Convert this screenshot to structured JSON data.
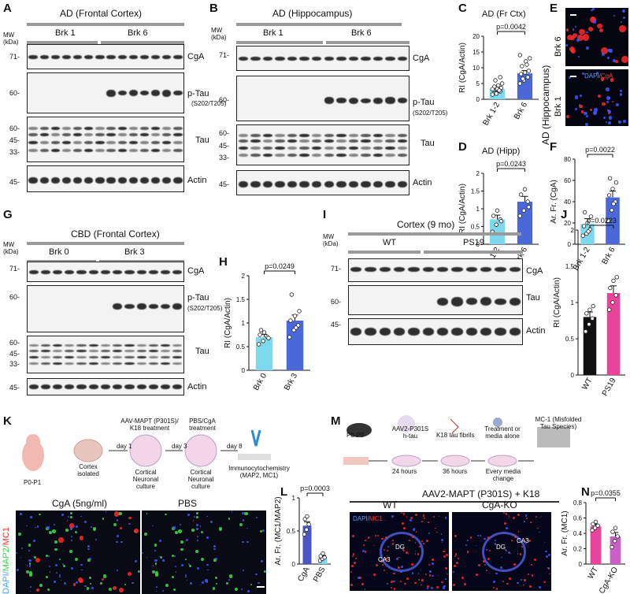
{
  "panels": {
    "A": {
      "letter": "A",
      "title": "AD (Frontal Cortex)",
      "groups": [
        "Brk 1",
        "Brk 6"
      ],
      "mw_label": "MW (kDa)",
      "mw": [
        "71-",
        "60-",
        "60-",
        "45-",
        "33-",
        "45-"
      ],
      "rows": [
        "CgA",
        "p-Tau",
        "(S202/T205)",
        "Tau",
        "Actin"
      ]
    },
    "B": {
      "letter": "B",
      "title": "AD (Hippocampus)",
      "groups": [
        "Brk 1",
        "Brk 6"
      ],
      "mw_label": "MW (kDa)",
      "mw": [
        "71-",
        "60-",
        "60-",
        "45-",
        "33-",
        "45-"
      ],
      "rows": [
        "CgA",
        "p-Tau",
        "(S202/T205)",
        "Tau",
        "Actin"
      ]
    },
    "C": {
      "letter": "C",
      "title": "AD (Fr Ctx)"
    },
    "D": {
      "letter": "D",
      "title": "AD (Hipp)"
    },
    "E": {
      "letter": "E",
      "side": "AD (Hippocampus)",
      "top": "Brk 6",
      "bottom": "Brk 1",
      "stain_a": "DAPI/",
      "stain_b": "CgA"
    },
    "F": {
      "letter": "F"
    },
    "G": {
      "letter": "G",
      "title": "CBD (Frontal Cortex)",
      "groups": [
        "Brk 0",
        "Brk 3"
      ],
      "mw_label": "MW (kDa)",
      "mw": [
        "71-",
        "60-",
        "60-",
        "45-",
        "33-",
        "45-"
      ],
      "rows": [
        "CgA",
        "p-Tau",
        "(S202/T205)",
        "Tau",
        "Actin"
      ]
    },
    "H": {
      "letter": "H"
    },
    "I": {
      "letter": "I",
      "title": "Cortex (9 mo)",
      "groups": [
        "WT",
        "PS19"
      ],
      "mw_label": "MW (kDa)",
      "mw": [
        "71-",
        "60-",
        "45-"
      ],
      "rows": [
        "CgA",
        "Tau",
        "Actin"
      ]
    },
    "J": {
      "letter": "J"
    },
    "K": {
      "letter": "K",
      "steps": [
        "P0-P1",
        "Cortex isolated",
        "day 1",
        "AAV-MAPT (P301S)/ K18 treatment",
        "Cortical Neuronal culture",
        "day 3",
        "PBS/CgA treatment",
        "Cortical Neuronal culture",
        "day 8",
        "Immunocytochemistry (MAP2, MC1)"
      ],
      "img_left": "CgA (5ng/ml)",
      "img_right": "PBS",
      "stain_a": "DAPI/",
      "stain_b": "MAP2/",
      "stain_c": "MC1"
    },
    "L": {
      "letter": "L"
    },
    "M": {
      "letter": "M",
      "steps": [
        "P8-P9",
        "AAV2-P301S h-tau",
        "24 hours",
        "K18 tau fibrils",
        "36 hours",
        "Treatment or media alone",
        "Every media change",
        "MC-1 (Misfolded Tau Species)"
      ],
      "title": "AAV2-MAPT (P301S) + K18",
      "img_left": "WT",
      "img_right": "CgA-KO",
      "stain_a": "DAPI/",
      "stain_b": "MC1",
      "region_dg": "DG",
      "region_ca3": "CA3"
    },
    "N": {
      "letter": "N"
    }
  },
  "chart_data": [
    {
      "id": "C",
      "type": "bar",
      "categories": [
        "Brk 1-2",
        "Brk 6"
      ],
      "values": [
        3.2,
        8.2
      ],
      "errors": [
        0.5,
        0.9
      ],
      "ylabel": "RI (CgA/Actin)",
      "ylim": [
        0,
        20
      ],
      "yticks": [
        0,
        5,
        10,
        15,
        20
      ],
      "pvalue": "p=0.0042",
      "colors": [
        "#7fd9ee",
        "#4a68d8"
      ],
      "points": [
        [
          1.5,
          2.0,
          2.5,
          3.0,
          3.3,
          3.6,
          4.0,
          4.4,
          5.0,
          6.0,
          2.8,
          3.2,
          1.8,
          7.0
        ],
        [
          5.0,
          6.0,
          7.0,
          8.0,
          8.5,
          9.0,
          10.5,
          12.0,
          13.0,
          6.5,
          11.0,
          14.0
        ]
      ]
    },
    {
      "id": "D",
      "type": "bar",
      "categories": [
        "Brk 1-2",
        "Brk 6"
      ],
      "values": [
        0.7,
        1.2
      ],
      "errors": [
        0.12,
        0.15
      ],
      "ylabel": "RI (CgA/Actin)",
      "ylim": [
        0,
        2.0
      ],
      "yticks": [
        0,
        0.5,
        1.0,
        1.5,
        2.0
      ],
      "pvalue": "p=0.0243",
      "colors": [
        "#7fd9ee",
        "#4a68d8"
      ],
      "points": [
        [
          0.35,
          0.55,
          0.7,
          0.8,
          0.95,
          0.65
        ],
        [
          0.8,
          0.95,
          1.2,
          1.4,
          1.55,
          1.05
        ]
      ]
    },
    {
      "id": "F",
      "type": "bar",
      "categories": [
        "Brk 1-2",
        "Brk 6"
      ],
      "values": [
        19,
        44
      ],
      "errors": [
        5,
        6
      ],
      "ylabel": "Ar. Fr. (CgA)",
      "ylim": [
        0,
        80
      ],
      "yticks": [
        0,
        20,
        40,
        60,
        80
      ],
      "pvalue": "p=0.0022",
      "colors": [
        "#7fd9ee",
        "#4a68d8"
      ],
      "points": [
        [
          8,
          10,
          14,
          17,
          20,
          26,
          30,
          12
        ],
        [
          22,
          32,
          40,
          46,
          52,
          58,
          62,
          38
        ]
      ]
    },
    {
      "id": "H",
      "type": "bar",
      "categories": [
        "Brk 0",
        "Brk 3"
      ],
      "values": [
        0.7,
        1.05
      ],
      "errors": [
        0.06,
        0.12
      ],
      "ylabel": "RI (CgA/Actin)",
      "ylim": [
        0,
        2.0
      ],
      "yticks": [
        0,
        0.5,
        1.0,
        1.5,
        2.0
      ],
      "pvalue": "p=0.0249",
      "colors": [
        "#7fd9ee",
        "#4a68d8"
      ],
      "points": [
        [
          0.55,
          0.62,
          0.7,
          0.75,
          0.8,
          0.68,
          0.85
        ],
        [
          0.7,
          0.85,
          0.95,
          1.05,
          1.15,
          1.25,
          1.6,
          0.9
        ]
      ]
    },
    {
      "id": "J",
      "type": "bar",
      "categories": [
        "WT",
        "PS19"
      ],
      "values": [
        0.8,
        1.13
      ],
      "errors": [
        0.07,
        0.1
      ],
      "ylabel": "RI (CgA/Actin)",
      "ylim": [
        0,
        2.0
      ],
      "yticks": [
        0,
        0.5,
        1.0,
        1.5,
        2.0
      ],
      "pvalue": "p=0.0223",
      "colors": [
        "#111111",
        "#e8449a"
      ],
      "points": [
        [
          0.6,
          0.7,
          0.78,
          0.85,
          0.9,
          0.95
        ],
        [
          0.9,
          1.0,
          1.1,
          1.2,
          1.3,
          1.35
        ]
      ]
    },
    {
      "id": "L",
      "type": "bar",
      "categories": [
        "CgA",
        "PBS"
      ],
      "values": [
        0.58,
        0.1
      ],
      "errors": [
        0.06,
        0.03
      ],
      "ylabel": "Ar. Fr. (MC1/MAP2)",
      "ylim": [
        0,
        1.0
      ],
      "yticks": [
        0,
        0.5,
        1.0
      ],
      "pvalue": "p=0.0003",
      "colors": [
        "#4a56c8",
        "#7fd9ee"
      ],
      "points": [
        [
          0.45,
          0.52,
          0.6,
          0.68,
          0.72
        ],
        [
          0.05,
          0.08,
          0.1,
          0.12,
          0.16
        ]
      ]
    },
    {
      "id": "N",
      "type": "bar",
      "categories": [
        "WT",
        "CgA-KO"
      ],
      "values": [
        0.49,
        0.36
      ],
      "errors": [
        0.03,
        0.05
      ],
      "ylabel": "Ar. Fr. (MC1)",
      "ylim": [
        0,
        0.8
      ],
      "yticks": [
        0,
        0.2,
        0.4,
        0.6,
        0.8
      ],
      "pvalue": "p=0.0355",
      "colors": [
        "#e8449a",
        "#cc5ec8"
      ],
      "points": [
        [
          0.44,
          0.47,
          0.5,
          0.52,
          0.55
        ],
        [
          0.22,
          0.3,
          0.36,
          0.42,
          0.47
        ]
      ]
    }
  ]
}
